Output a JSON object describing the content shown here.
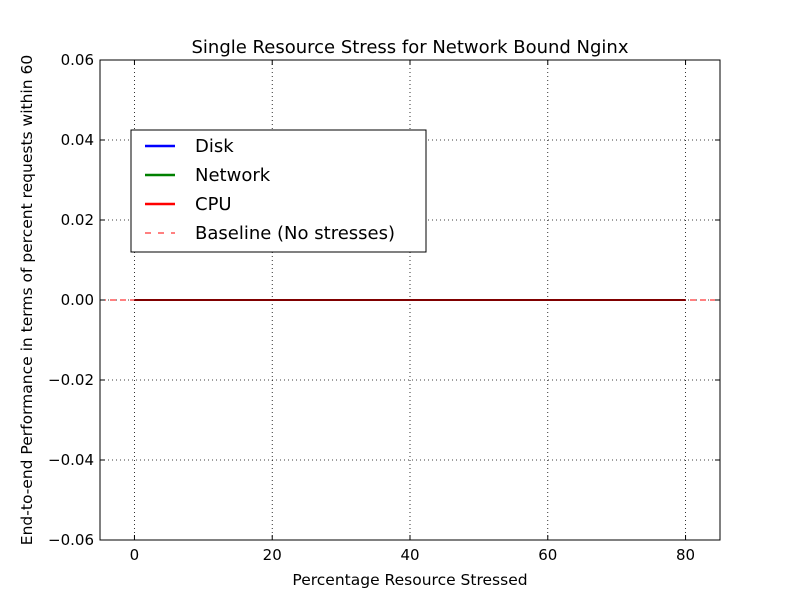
{
  "chart_data": {
    "type": "line",
    "title": "Single Resource Stress for Network Bound Nginx",
    "xlabel": "Percentage Resource Stressed",
    "ylabel": "End-to-end Performance in terms of percent requests within 60",
    "xlim": [
      -5,
      85
    ],
    "ylim": [
      -0.06,
      0.06
    ],
    "xticks": [
      0,
      20,
      40,
      60,
      80
    ],
    "xtick_labels": [
      "0",
      "20",
      "40",
      "60",
      "80"
    ],
    "yticks": [
      -0.06,
      -0.04,
      -0.02,
      0.0,
      0.02,
      0.04,
      0.06
    ],
    "ytick_labels": [
      "−0.06",
      "−0.04",
      "−0.02",
      "0.00",
      "0.02",
      "0.04",
      "0.06"
    ],
    "grid": true,
    "legend_position": "upper-left",
    "x": [
      0,
      80
    ],
    "series": [
      {
        "name": "Disk",
        "values": [
          0,
          0
        ],
        "color": "#0000ff",
        "style": "solid"
      },
      {
        "name": "Network",
        "values": [
          0,
          0
        ],
        "color": "#008000",
        "style": "solid"
      },
      {
        "name": "CPU",
        "values": [
          0,
          0
        ],
        "color": "#ff0000",
        "style": "solid"
      }
    ],
    "baseline": {
      "name": "Baseline (No stresses)",
      "value": 0,
      "color": "#ff0000",
      "style": "dashed"
    }
  }
}
